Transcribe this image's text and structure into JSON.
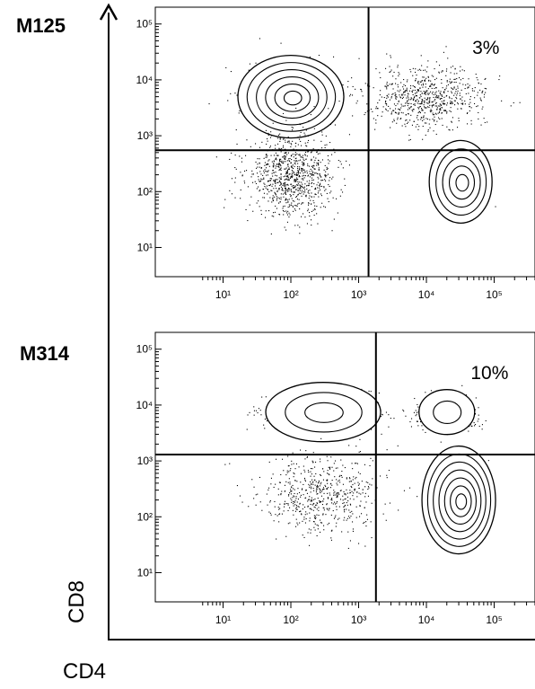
{
  "figure": {
    "x_axis_title": "CD4",
    "y_axis_title": "CD8"
  },
  "chart_data": [
    {
      "type": "scatter",
      "panel_label": "M125",
      "x_scale": "log",
      "y_scale": "log",
      "xlim": [
        1,
        400000
      ],
      "ylim": [
        3,
        200000
      ],
      "x_ticks": [
        {
          "value": 10,
          "label": "10¹"
        },
        {
          "value": 100,
          "label": "10²"
        },
        {
          "value": 1000,
          "label": "10³"
        },
        {
          "value": 10000,
          "label": "10⁴"
        },
        {
          "value": 100000,
          "label": "10⁵"
        }
      ],
      "y_ticks": [
        {
          "value": 10,
          "label": "10¹"
        },
        {
          "value": 100,
          "label": "10²"
        },
        {
          "value": 1000,
          "label": "10³"
        },
        {
          "value": 10000,
          "label": "10⁴"
        },
        {
          "value": 100000,
          "label": "10⁵"
        }
      ],
      "gates": {
        "x": 1400,
        "y": 550
      },
      "quadrant_annotation": {
        "text": "3%",
        "quadrant": "top-right"
      },
      "populations": [
        {
          "label": "CD8 single positive",
          "x": 100,
          "y": 5000,
          "contour_levels": 6
        },
        {
          "label": "CD4 single positive",
          "x": 32000,
          "y": 150,
          "contour_levels": 5
        },
        {
          "label": "double negative",
          "x": 100,
          "y": 200,
          "contour_levels": 0
        },
        {
          "label": "double positive",
          "x": 10000,
          "y": 5000,
          "contour_levels": 0
        }
      ]
    },
    {
      "type": "scatter",
      "panel_label": "M314",
      "x_scale": "log",
      "y_scale": "log",
      "xlim": [
        1,
        400000
      ],
      "ylim": [
        3,
        200000
      ],
      "x_ticks": [
        {
          "value": 10,
          "label": "10¹"
        },
        {
          "value": 100,
          "label": "10²"
        },
        {
          "value": 1000,
          "label": "10³"
        },
        {
          "value": 10000,
          "label": "10⁴"
        },
        {
          "value": 100000,
          "label": "10⁵"
        }
      ],
      "y_ticks": [
        {
          "value": 10,
          "label": "10¹"
        },
        {
          "value": 100,
          "label": "10²"
        },
        {
          "value": 1000,
          "label": "10³"
        },
        {
          "value": 10000,
          "label": "10⁴"
        },
        {
          "value": 100000,
          "label": "10⁵"
        }
      ],
      "gates": {
        "x": 1800,
        "y": 1300
      },
      "quadrant_annotation": {
        "text": "10%",
        "quadrant": "top-right"
      },
      "populations": [
        {
          "label": "CD8 single positive",
          "x": 300,
          "y": 7500,
          "contour_levels": 3
        },
        {
          "label": "double positive",
          "x": 20000,
          "y": 7500,
          "contour_levels": 2
        },
        {
          "label": "CD4 single positive",
          "x": 30000,
          "y": 200,
          "contour_levels": 7
        },
        {
          "label": "double negative",
          "x": 300,
          "y": 250,
          "contour_levels": 0
        }
      ]
    }
  ]
}
